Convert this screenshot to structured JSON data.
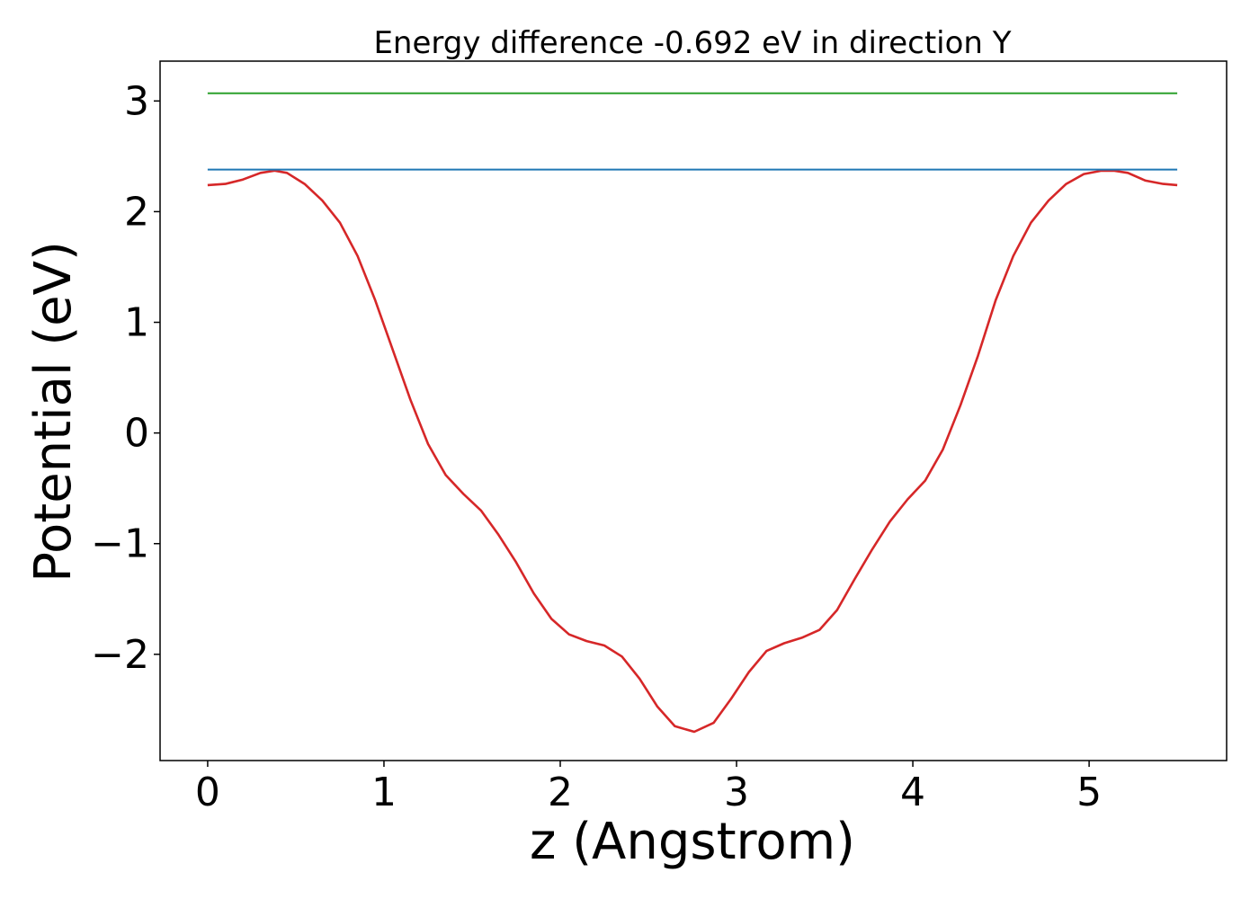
{
  "chart_data": {
    "type": "line",
    "title": "Energy difference -0.692 eV in direction Y",
    "xlabel": "z (Angstrom)",
    "ylabel": "Potential (eV)",
    "xlim": [
      -0.27,
      5.78
    ],
    "ylim": [
      -2.96,
      3.36
    ],
    "xticks": [
      0,
      1,
      2,
      3,
      4,
      5
    ],
    "xtick_labels": [
      "0",
      "1",
      "2",
      "3",
      "4",
      "5"
    ],
    "yticks": [
      -2,
      -1,
      0,
      1,
      2,
      3
    ],
    "ytick_labels": [
      "−2",
      "−1",
      "0",
      "1",
      "2",
      "3"
    ],
    "grid": false,
    "series": [
      {
        "color": "#d62728",
        "x": [
          0,
          0.1,
          0.2,
          0.3,
          0.38,
          0.45,
          0.55,
          0.65,
          0.75,
          0.85,
          0.95,
          1.05,
          1.15,
          1.25,
          1.35,
          1.45,
          1.55,
          1.65,
          1.75,
          1.85,
          1.95,
          2.05,
          2.15,
          2.25,
          2.35,
          2.45,
          2.55,
          2.65,
          2.76,
          2.87,
          2.97,
          3.07,
          3.17,
          3.27,
          3.37,
          3.47,
          3.57,
          3.67,
          3.77,
          3.87,
          3.97,
          4.07,
          4.17,
          4.27,
          4.37,
          4.47,
          4.57,
          4.67,
          4.77,
          4.87,
          4.97,
          5.07,
          5.14,
          5.22,
          5.32,
          5.42,
          5.5
        ],
        "y": [
          2.24,
          2.25,
          2.29,
          2.35,
          2.37,
          2.35,
          2.25,
          2.1,
          1.9,
          1.6,
          1.2,
          0.75,
          0.3,
          -0.1,
          -0.38,
          -0.55,
          -0.7,
          -0.92,
          -1.17,
          -1.45,
          -1.68,
          -1.82,
          -1.88,
          -1.92,
          -2.02,
          -2.22,
          -2.47,
          -2.65,
          -2.7,
          -2.62,
          -2.4,
          -2.16,
          -1.97,
          -1.9,
          -1.85,
          -1.78,
          -1.6,
          -1.32,
          -1.05,
          -0.8,
          -0.6,
          -0.43,
          -0.15,
          0.25,
          0.7,
          1.2,
          1.6,
          1.9,
          2.1,
          2.25,
          2.34,
          2.37,
          2.37,
          2.35,
          2.28,
          2.25,
          2.24
        ]
      },
      {
        "color": "#1f77b4",
        "x": [
          0,
          5.5
        ],
        "y": [
          2.38,
          2.38
        ]
      },
      {
        "color": "#2ca02c",
        "x": [
          0,
          5.5
        ],
        "y": [
          3.07,
          3.07
        ]
      }
    ]
  }
}
